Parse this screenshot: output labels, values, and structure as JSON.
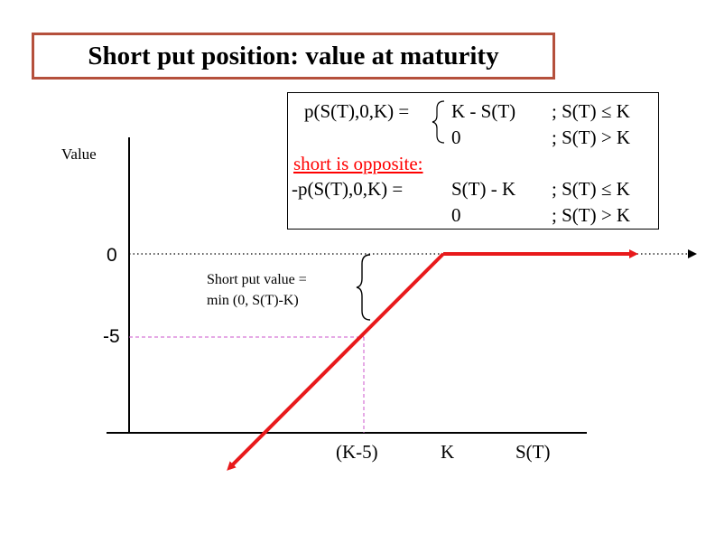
{
  "title": "Short put position: value at maturity",
  "formula": {
    "line1_lhs": "p(S(T),0,K)  =",
    "line1_case1": "K  -  S(T)",
    "line1_cond1": ";  S(T) ≤  K",
    "line2_case2": "0",
    "line2_cond2": ";  S(T) > K",
    "short_label": "short is opposite:",
    "line3_lhs": "-p(S(T),0,K)  =",
    "line3_case1": "S(T) - K",
    "line3_cond1": "; S(T) ≤  K",
    "line4_case2": "0",
    "line4_cond2": ";  S(T) > K"
  },
  "annotation": {
    "line1": "Short put value =",
    "line2": "min (0, S(T)-K)"
  },
  "axes": {
    "y_label": "Value",
    "y_tick_0": "0",
    "y_tick_minus5": "-5",
    "x_tick_k_minus_5": "(K-5)",
    "x_tick_k": "K",
    "x_label": "S(T)"
  },
  "colors": {
    "payoff_line": "#e8191b",
    "dotted_zero": "#000000",
    "dashed_guides": "#cc55cc",
    "title_border": "#b5503c",
    "short_label": "#ff0000"
  }
}
